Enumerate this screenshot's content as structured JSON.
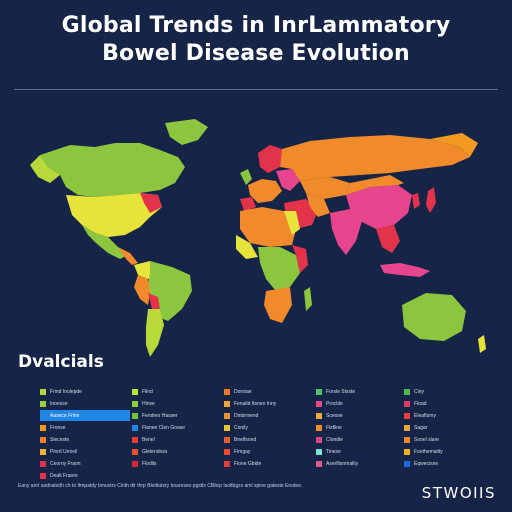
{
  "title_line1": "Global Trends in InrLammatory",
  "title_line2": "Bowel Disease Evolution",
  "legend_heading": "Dvalcials",
  "legend": {
    "col1": [
      {
        "label": "Frind Inolepde",
        "color": "#b7d93a"
      },
      {
        "label": "Inoesse",
        "color": "#9bcf3c"
      },
      {
        "label": "Aasece Frinn",
        "color": "#1f86e6",
        "selected": true
      },
      {
        "label": "Fronse",
        "color": "#f29a1f"
      },
      {
        "label": "Sleceste",
        "color": "#f07d28"
      },
      {
        "label": "Pinrd Unneil",
        "color": "#f0b236"
      },
      {
        "label": "Ceorny Fraon",
        "color": "#e3334b"
      },
      {
        "label": "Dealt Fraore",
        "color": "#e3334b"
      }
    ],
    "col2": [
      {
        "label": "Flind",
        "color": "#bfe23e"
      },
      {
        "label": "Hinse",
        "color": "#8ccf3b"
      },
      {
        "label": "Fendres Hasser",
        "color": "#6bc43c"
      },
      {
        "label": "Flanee Clen Goase",
        "color": "#1f86e6"
      },
      {
        "label": "Benel",
        "color": "#e8402f"
      },
      {
        "label": "Gletendoss",
        "color": "#f0502d"
      },
      {
        "label": "Flodils",
        "color": "#d6283f"
      }
    ],
    "col3": [
      {
        "label": "Dorstae",
        "color": "#f07a28"
      },
      {
        "label": "Fenalid Itsneo Inny",
        "color": "#f2a43a"
      },
      {
        "label": "Dinbrmend",
        "color": "#e8952d"
      },
      {
        "label": "Conily",
        "color": "#f0c43a"
      },
      {
        "label": "Bnelfsond",
        "color": "#e6602a"
      },
      {
        "label": "Fimgay",
        "color": "#ea4a2d"
      },
      {
        "label": "Flone Gbide",
        "color": "#e33a3a"
      }
    ],
    "col4": [
      {
        "label": "Forsle Stsste",
        "color": "#4fc06b"
      },
      {
        "label": "Proclde",
        "color": "#e84a8f"
      },
      {
        "label": "Sceose",
        "color": "#f0a93a"
      },
      {
        "label": "Flsfline",
        "color": "#f08a2a"
      },
      {
        "label": "Clondie",
        "color": "#d94a84"
      },
      {
        "label": "Tinese",
        "color": "#7fe0d6"
      },
      {
        "label": "Aserflisnmality",
        "color": "#e05b8a"
      }
    ],
    "col5": [
      {
        "label": "Ciey",
        "color": "#4fb84a"
      },
      {
        "label": "Fload",
        "color": "#d93a6a"
      },
      {
        "label": "Eleaftsmy",
        "color": "#e8403a"
      },
      {
        "label": "Sagar",
        "color": "#e7a53a"
      },
      {
        "label": "Sooel slare",
        "color": "#e88a2a"
      },
      {
        "label": "Foethemality",
        "color": "#f0b020"
      },
      {
        "label": "Eqwecisne",
        "color": "#1f6be0"
      }
    ]
  },
  "footer": "Eany anrt asdnatsdh ch to Itmpatdy bmuvtrs Cinth dir thrp Bloittutsry boareseo pgstls CBilep Isoltbgzs aml spine gateste Enotee.",
  "brand": "STWOIIS",
  "colors": {
    "background": "#152447",
    "ocean": "#152447",
    "yellow": "#e6e43a",
    "green": "#8cc63f",
    "orange": "#f08a2a",
    "red": "#e3334b",
    "pink": "#e8458f"
  }
}
